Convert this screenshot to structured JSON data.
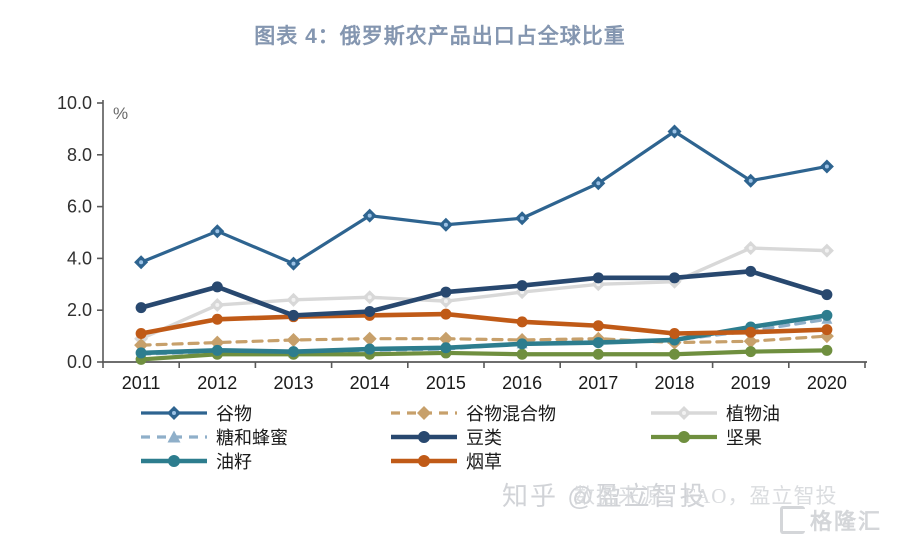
{
  "title": "图表 4：俄罗斯农产品出口占全球比重",
  "watermarks": {
    "zhihu": "知乎 @盈立智投",
    "source": "数据来源：FAO，盈立智投",
    "logo": "格隆汇"
  },
  "chart_data": {
    "type": "line",
    "title": "图表 4：俄罗斯农产品出口占全球比重",
    "unit_label": "%",
    "categories": [
      "2011",
      "2012",
      "2013",
      "2014",
      "2015",
      "2016",
      "2017",
      "2018",
      "2019",
      "2020"
    ],
    "ylim": [
      0,
      10
    ],
    "yticks": [
      "0.0",
      "2.0",
      "4.0",
      "6.0",
      "8.0",
      "10.0"
    ],
    "grid": false,
    "legend_position": "bottom-left",
    "axis_color": "#595959",
    "tick_label_color": "#303030",
    "series": [
      {
        "name": "谷物",
        "color": "#2E6490",
        "dash": false,
        "marker": "diamond",
        "marker_center": "#9DC3E6",
        "line_width": 3.2,
        "values": [
          3.85,
          5.05,
          3.8,
          5.65,
          5.3,
          5.55,
          6.9,
          8.9,
          7.0,
          7.55
        ]
      },
      {
        "name": "谷物混合物",
        "color": "#C7A06B",
        "dash": true,
        "marker": "diamond",
        "marker_center": "",
        "line_width": 3.2,
        "values": [
          0.65,
          0.75,
          0.85,
          0.9,
          0.9,
          0.85,
          0.9,
          0.75,
          0.8,
          1.0
        ]
      },
      {
        "name": "植物油",
        "color": "#D8D8D8",
        "dash": false,
        "marker": "diamond",
        "marker_center": "#F2F2F2",
        "line_width": 3.4,
        "values": [
          0.9,
          2.2,
          2.4,
          2.5,
          2.35,
          2.7,
          3.0,
          3.1,
          4.4,
          4.3
        ]
      },
      {
        "name": "糖和蜂蜜",
        "color": "#8FAFC9",
        "dash": true,
        "marker": "triangle",
        "marker_center": "",
        "line_width": 3.2,
        "values": [
          0.3,
          0.4,
          0.35,
          0.45,
          0.5,
          0.7,
          0.8,
          0.85,
          1.2,
          1.65
        ]
      },
      {
        "name": "豆类",
        "color": "#28486F",
        "dash": false,
        "marker": "circle",
        "marker_center": "",
        "line_width": 4.6,
        "values": [
          2.1,
          2.9,
          1.8,
          1.95,
          2.7,
          2.95,
          3.25,
          3.25,
          3.5,
          2.6
        ]
      },
      {
        "name": "坚果",
        "color": "#6F8F3F",
        "dash": false,
        "marker": "circle",
        "marker_center": "",
        "line_width": 4.2,
        "values": [
          0.1,
          0.3,
          0.3,
          0.3,
          0.35,
          0.3,
          0.3,
          0.3,
          0.4,
          0.45
        ]
      },
      {
        "name": "油籽",
        "color": "#2D7D8E",
        "dash": false,
        "marker": "circle",
        "marker_center": "",
        "line_width": 4.6,
        "values": [
          0.35,
          0.45,
          0.4,
          0.5,
          0.55,
          0.7,
          0.75,
          0.85,
          1.35,
          1.8
        ]
      },
      {
        "name": "烟草",
        "color": "#C05A17",
        "dash": false,
        "marker": "circle",
        "marker_center": "",
        "line_width": 4.6,
        "values": [
          1.1,
          1.65,
          1.75,
          1.8,
          1.85,
          1.55,
          1.4,
          1.1,
          1.15,
          1.25
        ]
      }
    ],
    "draw_order": [
      2,
      3,
      1,
      5,
      6,
      7,
      4,
      0
    ]
  }
}
